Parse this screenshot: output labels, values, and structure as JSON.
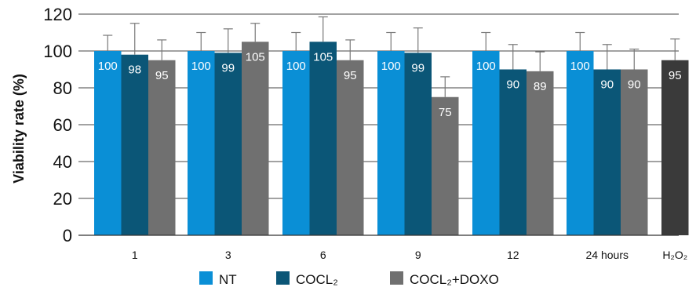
{
  "chart_data": {
    "type": "bar",
    "ylabel": "Viability rate (%)",
    "ylim": [
      0,
      120
    ],
    "yticks": [
      0,
      20,
      40,
      60,
      80,
      100,
      120
    ],
    "grid": "horizontal",
    "legend_position": "bottom",
    "categories": [
      "1",
      "3",
      "6",
      "9",
      "12",
      "24 hours"
    ],
    "series": [
      {
        "name": "NT",
        "color": "#0a8fd6",
        "values": [
          100,
          100,
          100,
          100,
          100,
          100
        ],
        "errors": [
          8.5,
          10,
          10,
          10,
          10,
          10
        ]
      },
      {
        "name": "COCL₂",
        "color": "#0b5677",
        "values": [
          98,
          99,
          105,
          99,
          90,
          90
        ],
        "errors": [
          17,
          13,
          13.5,
          13.5,
          13.5,
          13.5
        ]
      },
      {
        "name": "COCL₂+DOXO",
        "color": "#707070",
        "values": [
          95,
          105,
          95,
          75,
          89,
          90
        ],
        "errors": [
          11,
          10,
          11,
          11,
          10.5,
          11
        ]
      }
    ],
    "extra_bar": {
      "category": "H₂O₂",
      "value": 95,
      "error": 11.5,
      "color": "#3a3a3a"
    }
  }
}
